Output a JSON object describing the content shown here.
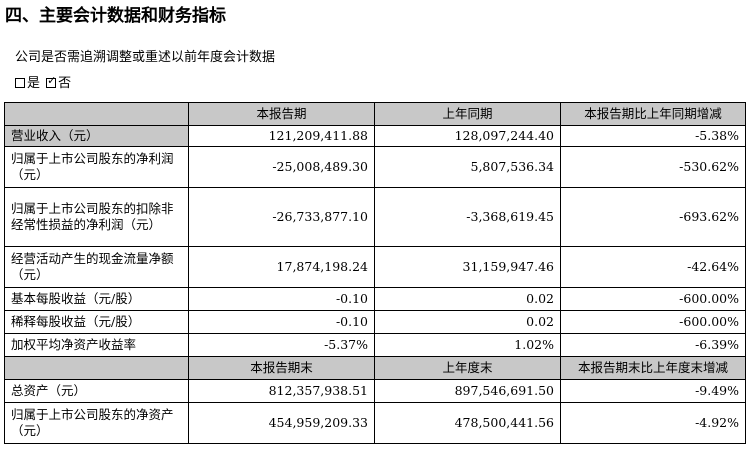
{
  "heading": "四、主要会计数据和财务指标",
  "question": "公司是否需追溯调整或重述以前年度会计数据",
  "options": [
    {
      "label": "是",
      "checked": false
    },
    {
      "label": "否",
      "checked": true
    }
  ],
  "check_mark": "✓",
  "table": {
    "header1": [
      "",
      "本报告期",
      "上年同期",
      "本报告期比上年同期增减"
    ],
    "rows1": [
      {
        "label": "营业收入（元）",
        "current": "121,209,411.88",
        "previous": "128,097,244.40",
        "change": "-5.38%"
      },
      {
        "label": "归属于上市公司股东的净利润（元）",
        "current": "-25,008,489.30",
        "previous": "5,807,536.34",
        "change": "-530.62%"
      },
      {
        "label": "归属于上市公司股东的扣除非经常性损益的净利润（元）",
        "current": "-26,733,877.10",
        "previous": "-3,368,619.45",
        "change": "-693.62%"
      },
      {
        "label": "经营活动产生的现金流量净额（元）",
        "current": "17,874,198.24",
        "previous": "31,159,947.46",
        "change": "-42.64%"
      },
      {
        "label": "基本每股收益（元/股）",
        "current": "-0.10",
        "previous": "0.02",
        "change": "-600.00%"
      },
      {
        "label": "稀释每股收益（元/股）",
        "current": "-0.10",
        "previous": "0.02",
        "change": "-600.00%"
      },
      {
        "label": "加权平均净资产收益率",
        "current": "-5.37%",
        "previous": "1.02%",
        "change": "-6.39%"
      }
    ],
    "header2": [
      "",
      "本报告期末",
      "上年度末",
      "本报告期末比上年度末增减"
    ],
    "rows2": [
      {
        "label": "总资产（元）",
        "current": "812,357,938.51",
        "previous": "897,546,691.50",
        "change": "-9.49%"
      },
      {
        "label": "归属于上市公司股东的净资产（元）",
        "current": "454,959,209.33",
        "previous": "478,500,441.56",
        "change": "-4.92%"
      }
    ]
  }
}
